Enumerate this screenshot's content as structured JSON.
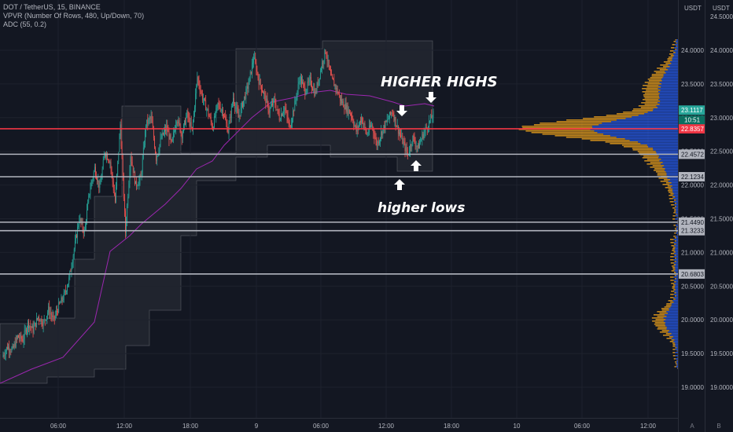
{
  "legend": {
    "symbol_line": "DOT / TetherUS, 15, BINANCE",
    "vpvr_line": "VPVR (Number Of Rows, 480, Up/Down, 70)",
    "adc_line": "ADC (55, 0.2)"
  },
  "scales": {
    "left_unit": "USDT",
    "right_unit": "USDT",
    "auto_label": "A",
    "log_label": "B"
  },
  "annotations": {
    "higher_highs": "HIGHER HIGHS",
    "higher_lows": "higher lows"
  },
  "colors": {
    "background": "#131722",
    "up_candle": "#26a69a",
    "down_candle": "#ef5350",
    "adc_line": "#9c27b0",
    "vp_up": "#2962ff",
    "vp_down": "#f0a21b",
    "resistance_red": "#f23645",
    "level_line": "#b2b5be"
  },
  "chart_data": {
    "type": "candlestick",
    "symbol": "DOT / TetherUS",
    "timeframe": "15",
    "exchange": "BINANCE",
    "x_ticks": [
      "06:00",
      "12:00",
      "18:00",
      "9",
      "06:00",
      "12:00",
      "18:00",
      "10",
      "06:00",
      "12:00"
    ],
    "y_ticks_left": [
      "24.0000",
      "23.5000",
      "23.0000",
      "22.5000",
      "22.0000",
      "21.5000",
      "21.0000",
      "20.5000",
      "20.0000",
      "19.5000",
      "19.0000"
    ],
    "y_ticks_right": [
      "24.5000",
      "24.0000",
      "23.5000",
      "23.0000",
      "22.5000",
      "22.0000",
      "21.5000",
      "21.0000",
      "20.5000",
      "20.0000",
      "19.5000",
      "19.0000"
    ],
    "ylim": [
      18.85,
      24.6
    ],
    "price_path": [
      19.45,
      19.6,
      19.55,
      19.75,
      19.7,
      19.95,
      19.85,
      20.05,
      19.95,
      20.15,
      20.0,
      20.2,
      20.35,
      20.6,
      21.05,
      21.5,
      21.3,
      21.9,
      22.25,
      21.95,
      22.5,
      22.35,
      21.75,
      22.9,
      21.3,
      22.45,
      22.0,
      22.1,
      22.9,
      23.0,
      22.4,
      22.7,
      22.85,
      22.6,
      23.0,
      22.75,
      23.05,
      22.8,
      23.6,
      23.3,
      23.1,
      22.85,
      23.2,
      23.1,
      22.8,
      23.3,
      23.0,
      23.25,
      23.5,
      23.9,
      23.55,
      23.35,
      23.1,
      23.25,
      23.0,
      23.15,
      22.85,
      23.2,
      23.6,
      23.4,
      23.55,
      23.35,
      23.7,
      24.0,
      23.6,
      23.45,
      23.25,
      23.15,
      23.05,
      22.8,
      23.0,
      22.75,
      22.9,
      22.6,
      22.8,
      22.95,
      23.1,
      22.85,
      22.65,
      22.45,
      22.7,
      22.55,
      22.75,
      22.9,
      23.05
    ],
    "levels": [
      {
        "price": 22.8357,
        "label": "22.8357",
        "kind": "resistance"
      },
      {
        "price": 22.4572,
        "label": "22.4572",
        "kind": "support"
      },
      {
        "price": 22.1234,
        "label": "22.1234",
        "kind": "support"
      },
      {
        "price": 21.449,
        "label": "21.4490",
        "kind": "support"
      },
      {
        "price": 21.3233,
        "label": "21.3233",
        "kind": "support"
      },
      {
        "price": 20.6803,
        "label": "20.6803",
        "kind": "support"
      }
    ],
    "current_price": {
      "price": 23.1117,
      "label": "23.1117",
      "countdown": "10:51"
    }
  }
}
